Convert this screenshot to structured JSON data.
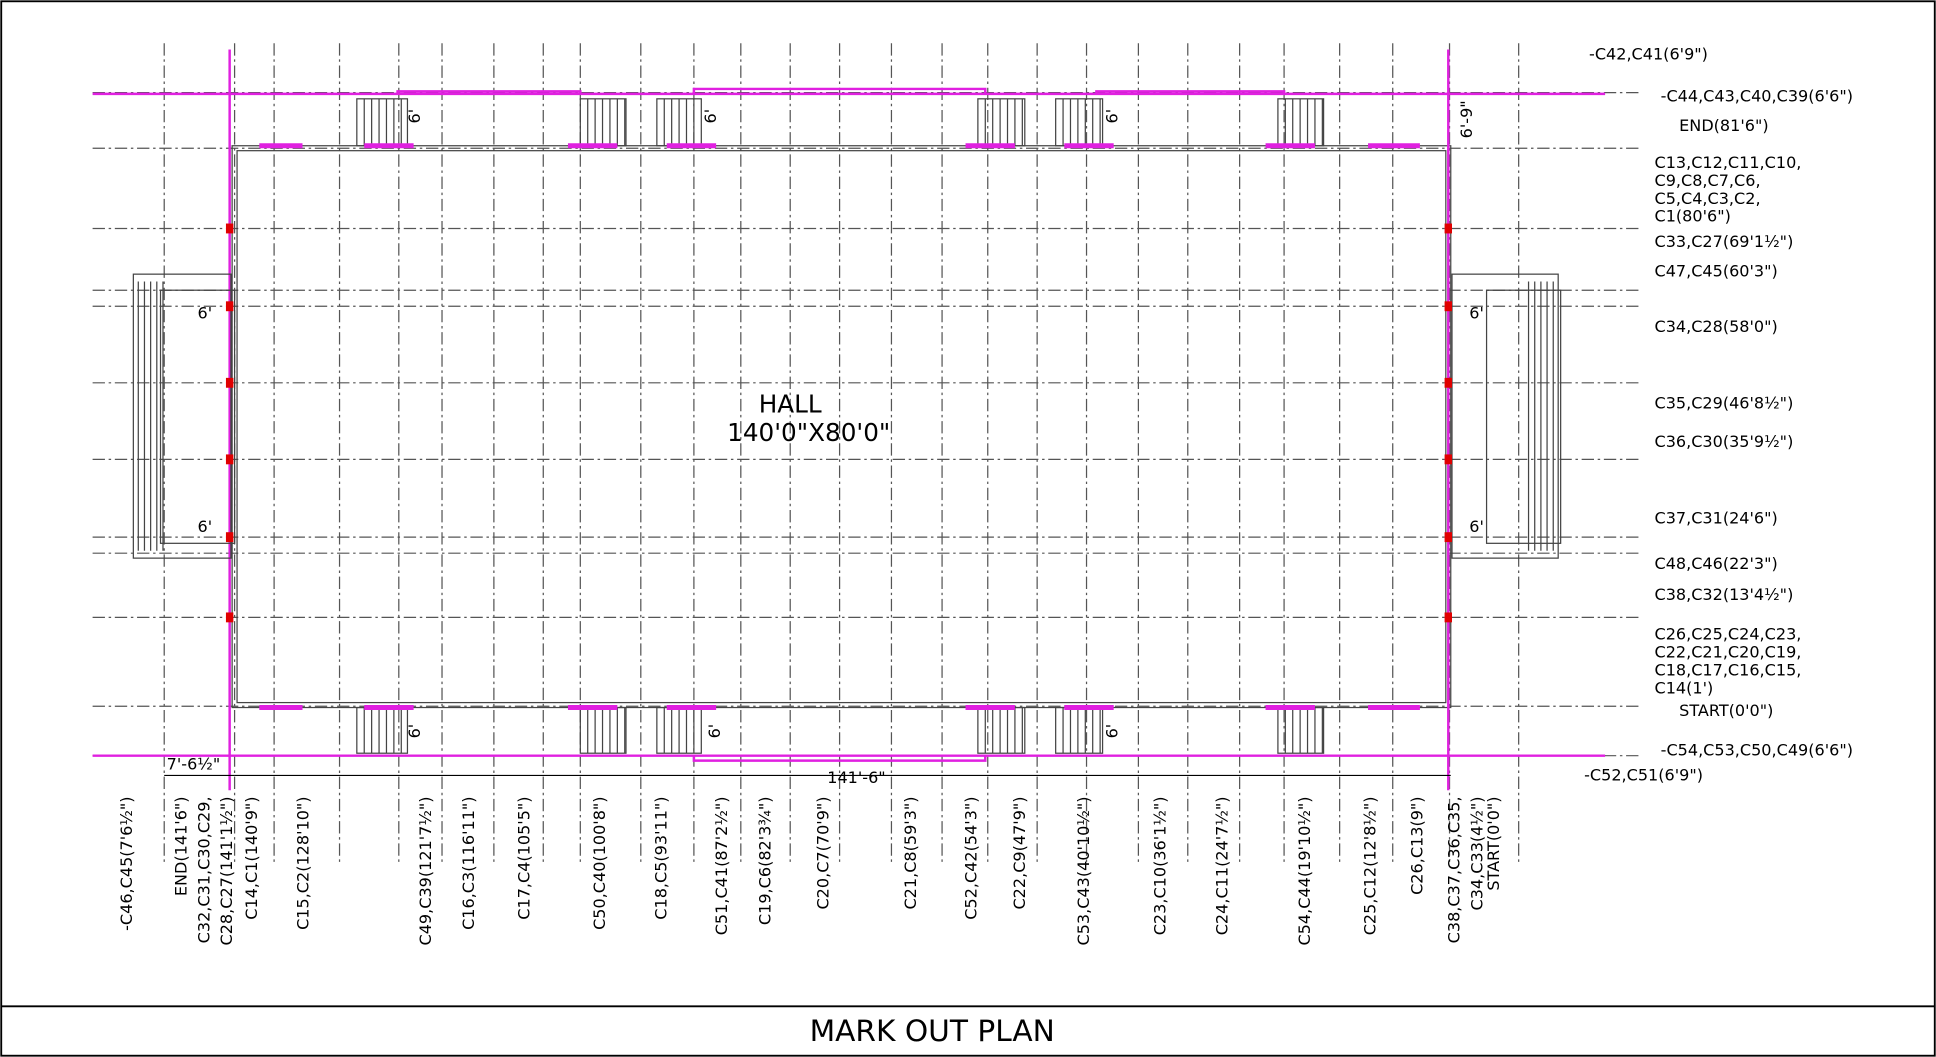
{
  "title": "MARK OUT PLAN",
  "hall": {
    "name": "HALL",
    "size": "140'0\"X80'0\""
  },
  "right_labels": [
    {
      "lines": [
        "-C42,C41(6'9\")"
      ]
    },
    {
      "lines": [
        "-C44,C43,C40,C39(6'6\")"
      ]
    },
    {
      "lines": [
        "END(81'6\")"
      ]
    },
    {
      "lines": [
        "C13,C12,C11,C10,",
        "C9,C8,C7,C6,",
        "C5,C4,C3,C2,",
        "C1(80'6\")"
      ]
    },
    {
      "lines": [
        "C33,C27(69'1½\")"
      ]
    },
    {
      "lines": [
        "C47,C45(60'3\")"
      ]
    },
    {
      "lines": [
        "C34,C28(58'0\")"
      ]
    },
    {
      "lines": [
        "C35,C29(46'8½\")"
      ]
    },
    {
      "lines": [
        "C36,C30(35'9½\")"
      ]
    },
    {
      "lines": [
        "C37,C31(24'6\")"
      ]
    },
    {
      "lines": [
        "C48,C46(22'3\")"
      ]
    },
    {
      "lines": [
        "C38,C32(13'4½\")"
      ]
    },
    {
      "lines": [
        "C26,C25,C24,C23,",
        "C22,C21,C20,C19,",
        "C18,C17,C16,C15,",
        "C14(1')"
      ]
    },
    {
      "lines": [
        "START(0'0\")"
      ]
    },
    {
      "lines": [
        "-C54,C53,C50,C49(6'6\")"
      ]
    },
    {
      "lines": [
        "-C52,C51(6'9\")"
      ]
    }
  ],
  "bottom_labels": [
    {
      "lines": [
        "-C46,C45(7'6½\")"
      ]
    },
    {
      "lines": [
        "END(141'6\")",
        "C32,C31,C30,C29,",
        "C28,C27(141'1½\")"
      ]
    },
    {
      "lines": [
        "C14,C1(140'9\")"
      ]
    },
    {
      "lines": [
        "C15,C2(128'10\")"
      ]
    },
    {
      "lines": [
        "C49,C39(121'7½\")"
      ]
    },
    {
      "lines": [
        "C16,C3(116'11\")"
      ]
    },
    {
      "lines": [
        "C17,C4(105'5\")"
      ]
    },
    {
      "lines": [
        "C50,C40(100'8\")"
      ]
    },
    {
      "lines": [
        "C18,C5(93'11\")"
      ]
    },
    {
      "lines": [
        "C51,C41(87'2½\")"
      ]
    },
    {
      "lines": [
        "C19,C6(82'3¾\")"
      ]
    },
    {
      "lines": [
        "C20,C7(70'9\")"
      ]
    },
    {
      "lines": [
        "C21,C8(59'3\")"
      ]
    },
    {
      "lines": [
        "C52,C42(54'3\")"
      ]
    },
    {
      "lines": [
        "C22,C9(47'9\")"
      ]
    },
    {
      "lines": [
        "C53,C43(40'10½\")"
      ]
    },
    {
      "lines": [
        "C23,C10(36'1½\")"
      ]
    },
    {
      "lines": [
        "C24,C11(24'7½\")"
      ]
    },
    {
      "lines": [
        "C54,C44(19'10½\")"
      ]
    },
    {
      "lines": [
        "C25,C12(12'8½\")"
      ]
    },
    {
      "lines": [
        "C26,C13(9\")"
      ]
    },
    {
      "lines": [
        "C38,C37,C36,C35,",
        "C34,C33(4½\")"
      ]
    },
    {
      "lines": [
        "START(0'0\")"
      ]
    }
  ],
  "dimensions": {
    "left_offset": "7'-6½\"",
    "overall": "141'-6\"",
    "corner": "6'-9\"",
    "stair_widths": [
      "6'",
      "6'",
      "6'",
      "6'",
      "6'",
      "6'",
      "6'",
      "6'",
      "6'",
      "6'"
    ]
  }
}
